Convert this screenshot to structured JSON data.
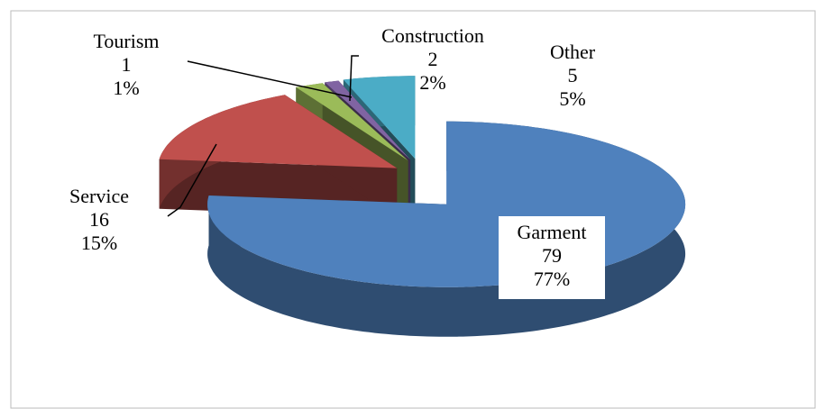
{
  "chart_data": {
    "type": "pie3d",
    "categories": [
      "Garment",
      "Service",
      "Construction",
      "Tourism",
      "Other"
    ],
    "values": [
      79,
      16,
      2,
      1,
      5
    ],
    "percents": [
      77,
      15,
      2,
      1,
      5
    ],
    "percent_labels": [
      "77%",
      "15%",
      "2%",
      "1%",
      "5%"
    ],
    "colors": [
      "#4f81bd",
      "#c0504d",
      "#9bbb59",
      "#8064a2",
      "#4bacc6"
    ]
  }
}
